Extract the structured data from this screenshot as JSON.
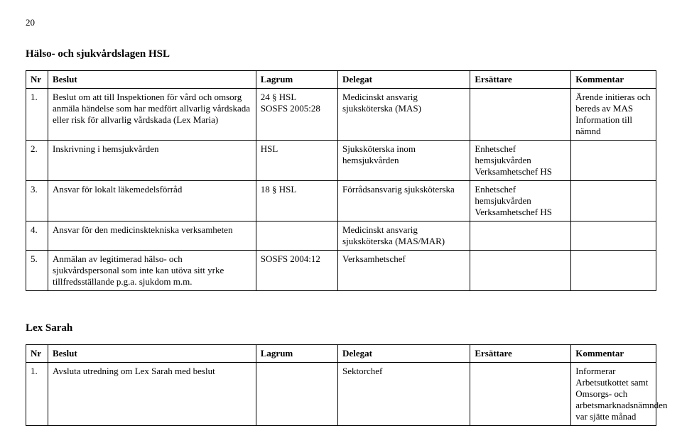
{
  "page_number": "20",
  "section1": {
    "title": "Hälso- och sjukvårdslagen HSL",
    "columns": [
      "Nr",
      "Beslut",
      "Lagrum",
      "Delegat",
      "Ersättare",
      "Kommentar"
    ],
    "rows": [
      {
        "nr": "1.",
        "beslut": "Beslut om att till Inspektionen för vård och omsorg anmäla händelse som har medfört allvarlig vårdskada eller risk för allvarlig vårdskada (Lex Maria)",
        "lagrum": "24 § HSL\nSOSFS 2005:28",
        "delegat": "Medicinskt ansvarig sjuksköterska (MAS)",
        "ers": "",
        "kom": "Ärende initieras och bereds av MAS Information till nämnd"
      },
      {
        "nr": "2.",
        "beslut": "Inskrivning i hemsjukvården",
        "lagrum": "HSL",
        "delegat": "Sjuksköterska inom hemsjukvården",
        "ers": "Enhetschef hemsjukvården Verksamhetschef HS",
        "kom": ""
      },
      {
        "nr": "3.",
        "beslut": "Ansvar för lokalt läkemedelsförråd",
        "lagrum": "18 § HSL",
        "delegat": "Förrådsansvarig sjuksköterska",
        "ers": "Enhetschef hemsjukvården Verksamhetschef HS",
        "kom": ""
      },
      {
        "nr": "4.",
        "beslut": "Ansvar för den medicinsktekniska verksamheten",
        "lagrum": "",
        "delegat": "Medicinskt ansvarig sjuksköterska (MAS/MAR)",
        "ers": "",
        "kom": ""
      },
      {
        "nr": "5.",
        "beslut": "Anmälan av legitimerad hälso- och sjukvårdspersonal som inte kan utöva sitt yrke tillfredsställande p.g.a. sjukdom m.m.",
        "lagrum": "SOSFS  2004:12",
        "delegat": "Verksamhetschef",
        "ers": "",
        "kom": ""
      }
    ]
  },
  "section2": {
    "title": "Lex Sarah",
    "columns": [
      "Nr",
      "Beslut",
      "Lagrum",
      "Delegat",
      "Ersättare",
      "Kommentar"
    ],
    "rows": [
      {
        "nr": "1.",
        "beslut": "Avsluta utredning om Lex Sarah med beslut",
        "lagrum": "",
        "delegat": "Sektorchef",
        "ers": "",
        "kom": "Informerar Arbetsutkottet samt Omsorgs- och arbetsmarknadsnämnden var sjätte månad"
      }
    ]
  }
}
